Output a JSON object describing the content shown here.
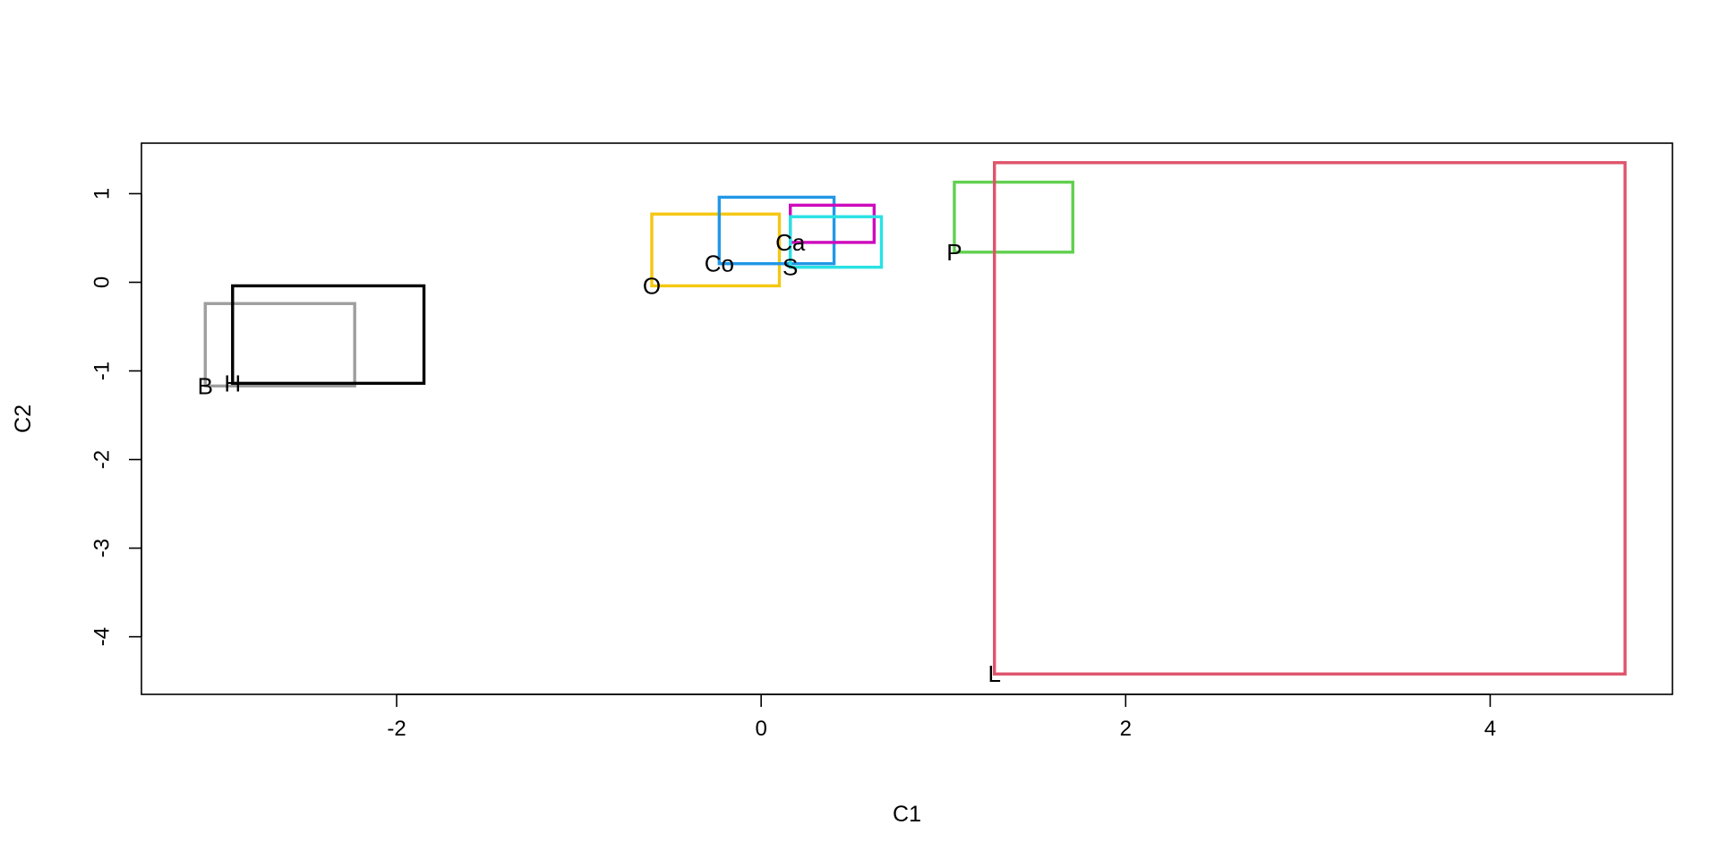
{
  "chart_data": {
    "type": "rectangles",
    "title": "",
    "xlabel": "C1",
    "ylabel": "C2",
    "xlim": [
      -3.4,
      5.0
    ],
    "ylim": [
      -4.65,
      1.57
    ],
    "x_ticks": [
      -2,
      0,
      2,
      4
    ],
    "y_ticks": [
      -4,
      -3,
      -2,
      -1,
      0,
      1
    ],
    "x_tick_labels": [
      "-2",
      "0",
      "2",
      "4"
    ],
    "y_tick_labels": [
      "-4",
      "-3",
      "-2",
      "-1",
      "0",
      "1"
    ],
    "grid": false,
    "legend": "none",
    "boxes": [
      {
        "label": "B",
        "x_min": -3.05,
        "x_max": -2.23,
        "y_min": -1.17,
        "y_max": -0.24,
        "color": "#9E9E9E"
      },
      {
        "label": "H",
        "x_min": -2.9,
        "x_max": -1.85,
        "y_min": -1.14,
        "y_max": -0.04,
        "color": "#000000"
      },
      {
        "label": "O",
        "x_min": -0.6,
        "x_max": 0.1,
        "y_min": -0.04,
        "y_max": 0.77,
        "color": "#F5C710"
      },
      {
        "label": "Co",
        "x_min": -0.23,
        "x_max": 0.4,
        "y_min": 0.21,
        "y_max": 0.96,
        "color": "#2297E6"
      },
      {
        "label": "Ca",
        "x_min": 0.16,
        "x_max": 0.62,
        "y_min": 0.45,
        "y_max": 0.87,
        "color": "#CD0BBC"
      },
      {
        "label": "S",
        "x_min": 0.16,
        "x_max": 0.66,
        "y_min": 0.17,
        "y_max": 0.74,
        "color": "#28E2E5"
      },
      {
        "label": "P",
        "x_min": 1.06,
        "x_max": 1.71,
        "y_min": 0.34,
        "y_max": 1.13,
        "color": "#61D04F"
      },
      {
        "label": "L",
        "x_min": 1.28,
        "x_max": 4.74,
        "y_min": -4.42,
        "y_max": 1.35,
        "color": "#DF536B"
      }
    ]
  }
}
